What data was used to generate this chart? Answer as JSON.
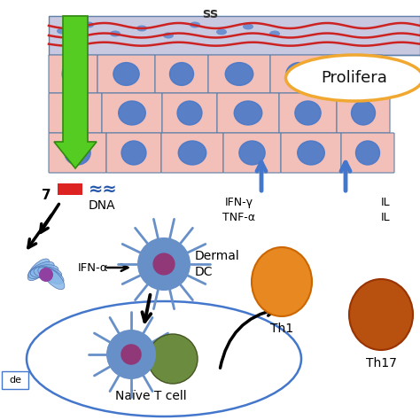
{
  "background_color": "#ffffff",
  "skin_layer_color": "#f2c0b8",
  "skin_border_color": "#6080a8",
  "blue_dot_color": "#4878c8",
  "green_arrow_color": "#55cc22",
  "black_arrow_color": "#111111",
  "blue_arrow_color": "#4477cc",
  "cell_body_color": "#6890c8",
  "cell_nucleus_color": "#903878",
  "naive_cell_color": "#6b8c3e",
  "th1_color": "#e88820",
  "th17_color": "#b85010",
  "red_bar_color": "#dd2222",
  "dna_color": "#2255aa",
  "prolifera_oval_color": "#f0a830",
  "top_tissue_color": "#c8c8e0",
  "red_fiber_color": "#cc2222",
  "pdc_color": "#88b8e8",
  "labels": {
    "prolifera": "Prolifera",
    "dna": "DNA",
    "ifn_alpha": "IFN-α",
    "dermal_dc": "Dermal\nDC",
    "ifn_gamma": "IFN-γ\nTNF-α",
    "th1": "Th1",
    "th17": "Th17",
    "naive_t": "Naïve T cell",
    "top_label": "ss",
    "tlr7": "7",
    "de": "de"
  },
  "figsize": [
    4.74,
    4.74
  ],
  "dpi": 100
}
